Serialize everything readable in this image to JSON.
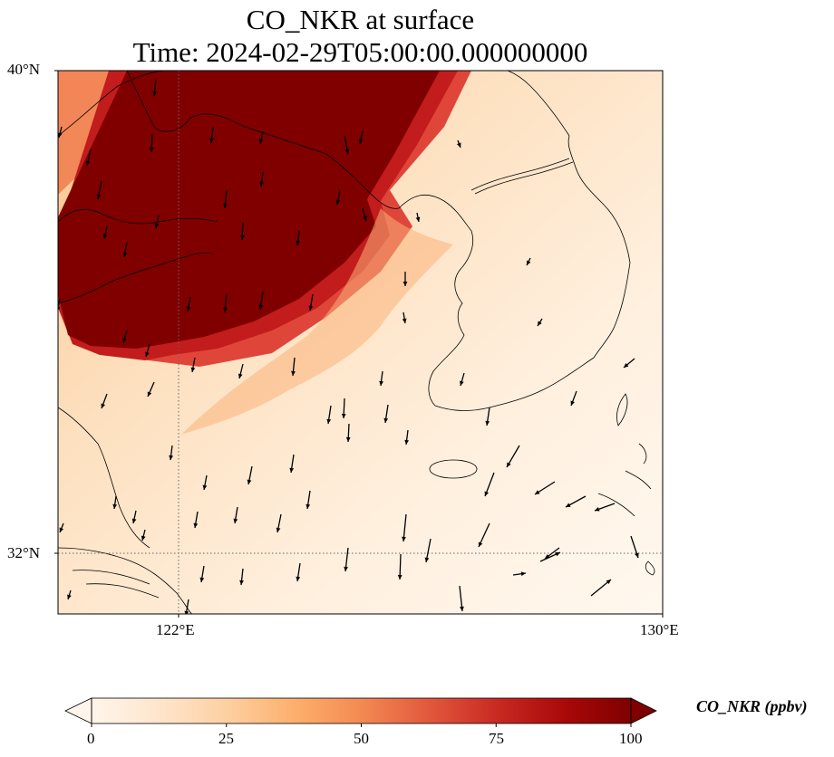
{
  "title": {
    "line1": "CO_NKR at surface",
    "line2": "Time: 2024-02-29T05:00:00.000000000"
  },
  "map": {
    "extent": {
      "lon_min": 119,
      "lon_max": 130,
      "lat_min": 31,
      "lat_max": 40
    },
    "lat_labels": [
      {
        "value": 40,
        "text": "40°N"
      },
      {
        "value": 32,
        "text": "32°N"
      }
    ],
    "lon_labels": [
      {
        "value": 122,
        "text": "122°E"
      },
      {
        "value": 130,
        "text": "130°E"
      }
    ],
    "gridlines": {
      "lons": [
        122
      ],
      "lats": [
        32
      ],
      "style": "dotted"
    },
    "field": "CO_NKR",
    "features": [
      "coastline",
      "borders",
      "wind vectors"
    ]
  },
  "colorbar": {
    "label": "CO_NKR (ppbv)",
    "min": 0,
    "max": 100,
    "extend": "both",
    "ticks": [
      {
        "value": 0,
        "text": "0"
      },
      {
        "value": 25,
        "text": "25"
      },
      {
        "value": 50,
        "text": "50"
      },
      {
        "value": 75,
        "text": "75"
      },
      {
        "value": 100,
        "text": "100"
      }
    ],
    "colormap": [
      "#fff5eb",
      "#fee6ce",
      "#fdd0a2",
      "#fdae6b",
      "#fd8d3c",
      "#f16913",
      "#d94801",
      "#a63603",
      "#7f2704"
    ]
  }
}
